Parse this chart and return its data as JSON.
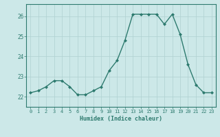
{
  "x": [
    0,
    1,
    2,
    3,
    4,
    5,
    6,
    7,
    8,
    9,
    10,
    11,
    12,
    13,
    14,
    15,
    16,
    17,
    18,
    19,
    20,
    21,
    22,
    23
  ],
  "y": [
    22.2,
    22.3,
    22.5,
    22.8,
    22.8,
    22.5,
    22.1,
    22.1,
    22.3,
    22.5,
    23.3,
    23.8,
    24.8,
    26.1,
    26.1,
    26.1,
    26.1,
    25.6,
    26.1,
    25.1,
    23.6,
    22.6,
    22.2,
    22.2
  ],
  "xlabel": "Humidex (Indice chaleur)",
  "ylim": [
    21.5,
    26.6
  ],
  "xlim": [
    -0.5,
    23.5
  ],
  "bg_color": "#cce8e8",
  "line_color": "#2d7a6e",
  "grid_color": "#afd0d0",
  "tick_label_color": "#2d7a6e",
  "axis_color": "#2d7a6e",
  "xlabel_color": "#2d7a6e",
  "yticks": [
    22,
    23,
    24,
    25,
    26
  ],
  "xticks": [
    0,
    1,
    2,
    3,
    4,
    5,
    6,
    7,
    8,
    9,
    10,
    11,
    12,
    13,
    14,
    15,
    16,
    17,
    18,
    19,
    20,
    21,
    22,
    23
  ]
}
